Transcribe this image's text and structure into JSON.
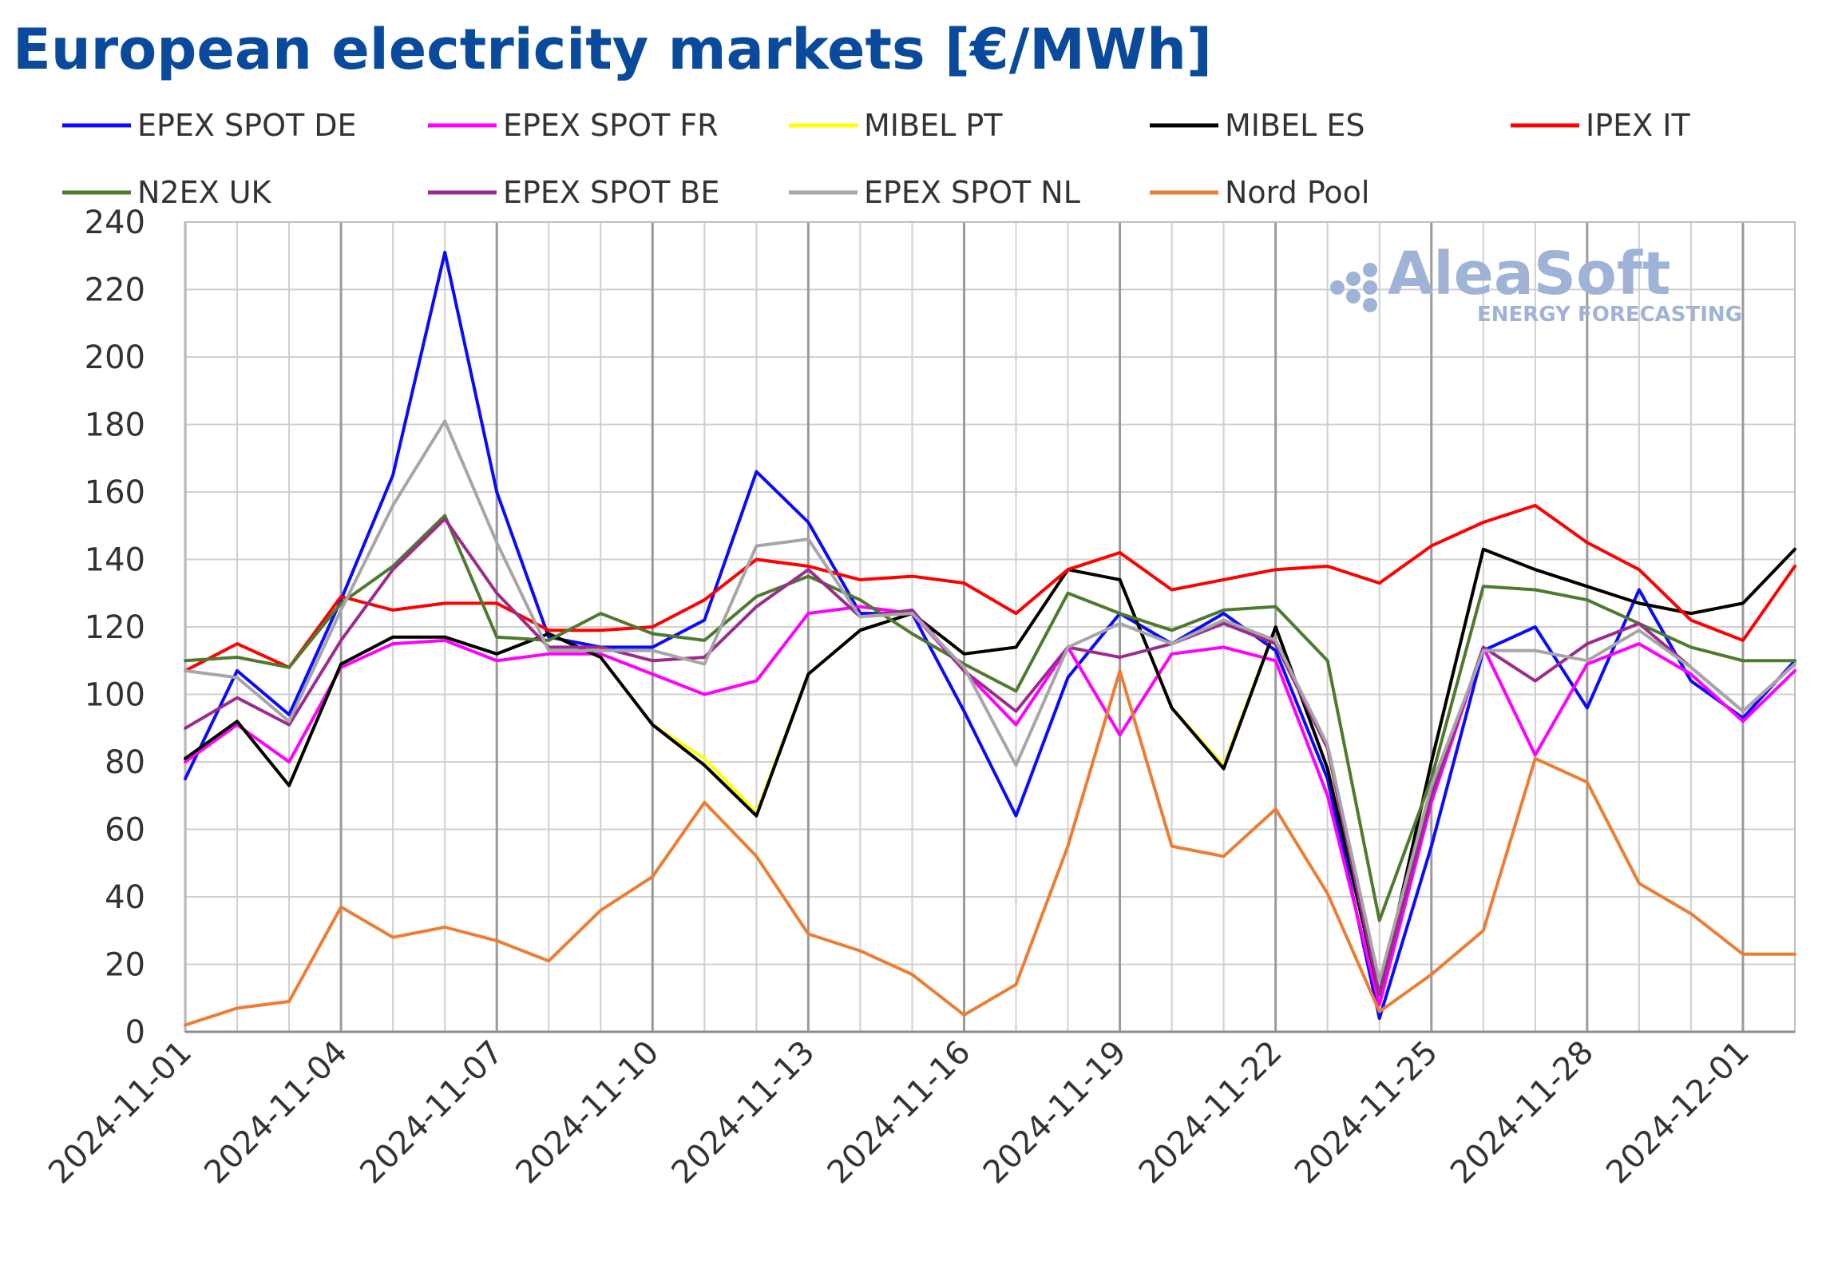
{
  "title": "European electricity markets [€/MWh]",
  "watermark": {
    "brand": "AleaSoft",
    "tagline": "ENERGY FORECASTING"
  },
  "chart_data": {
    "type": "line",
    "title": "European electricity markets [€/MWh]",
    "xlabel": "",
    "ylabel": "",
    "ylim": [
      0,
      240
    ],
    "yticks": [
      0,
      20,
      40,
      60,
      80,
      100,
      120,
      140,
      160,
      180,
      200,
      220,
      240
    ],
    "x": [
      "2024-11-01",
      "2024-11-02",
      "2024-11-03",
      "2024-11-04",
      "2024-11-05",
      "2024-11-06",
      "2024-11-07",
      "2024-11-08",
      "2024-11-09",
      "2024-11-10",
      "2024-11-11",
      "2024-11-12",
      "2024-11-13",
      "2024-11-14",
      "2024-11-15",
      "2024-11-16",
      "2024-11-17",
      "2024-11-18",
      "2024-11-19",
      "2024-11-20",
      "2024-11-21",
      "2024-11-22",
      "2024-11-23",
      "2024-11-24",
      "2024-11-25",
      "2024-11-26",
      "2024-11-27",
      "2024-11-28",
      "2024-11-29",
      "2024-11-30",
      "2024-12-01",
      "2024-12-02"
    ],
    "xtick_labels": [
      "2024-11-01",
      "2024-11-04",
      "2024-11-07",
      "2024-11-10",
      "2024-11-13",
      "2024-11-16",
      "2024-11-19",
      "2024-11-22",
      "2024-11-25",
      "2024-11-28",
      "2024-12-01"
    ],
    "grid": true,
    "legend_position": "top",
    "series": [
      {
        "name": "EPEX SPOT DE",
        "color": "#0a0aff",
        "values": [
          75,
          107,
          94,
          128,
          165,
          231,
          160,
          117,
          114,
          114,
          122,
          166,
          151,
          124,
          124,
          95,
          64,
          105,
          124,
          115,
          124,
          113,
          75,
          4,
          55,
          113,
          120,
          96,
          131,
          104,
          93,
          110
        ]
      },
      {
        "name": "EPEX SPOT FR",
        "color": "#ff00ff",
        "values": [
          80,
          91,
          80,
          108,
          115,
          116,
          110,
          112,
          112,
          106,
          100,
          104,
          124,
          126,
          124,
          107,
          91,
          114,
          88,
          112,
          114,
          110,
          70,
          8,
          68,
          114,
          82,
          109,
          115,
          106,
          92,
          107
        ]
      },
      {
        "name": "MIBEL PT",
        "color": "#ffff00",
        "values": [
          81,
          92,
          73,
          109,
          117,
          117,
          112,
          118,
          111,
          91,
          81,
          65,
          106,
          119,
          124,
          112,
          114,
          137,
          134,
          96,
          79,
          120,
          78,
          11,
          80,
          143,
          137,
          132,
          127,
          124,
          127,
          143
        ]
      },
      {
        "name": "MIBEL ES",
        "color": "#000000",
        "values": [
          81,
          92,
          73,
          109,
          117,
          117,
          112,
          118,
          111,
          91,
          79,
          64,
          106,
          119,
          124,
          112,
          114,
          137,
          134,
          96,
          78,
          120,
          78,
          11,
          80,
          143,
          137,
          132,
          127,
          124,
          127,
          143
        ]
      },
      {
        "name": "IPEX IT",
        "color": "#ff0000",
        "values": [
          107,
          115,
          108,
          129,
          125,
          127,
          127,
          119,
          119,
          120,
          128,
          140,
          138,
          134,
          135,
          133,
          124,
          137,
          142,
          131,
          134,
          137,
          138,
          133,
          144,
          151,
          156,
          145,
          137,
          122,
          116,
          138
        ]
      },
      {
        "name": "N2EX UK",
        "color": "#4e7a2e",
        "values": [
          110,
          111,
          108,
          127,
          138,
          153,
          117,
          116,
          124,
          118,
          116,
          129,
          135,
          128,
          118,
          109,
          101,
          130,
          124,
          119,
          125,
          126,
          110,
          33,
          75,
          132,
          131,
          128,
          121,
          114,
          110,
          110
        ]
      },
      {
        "name": "EPEX SPOT BE",
        "color": "#9b2c8d",
        "values": [
          90,
          99,
          91,
          116,
          137,
          152,
          130,
          114,
          114,
          110,
          111,
          126,
          137,
          123,
          125,
          107,
          95,
          114,
          111,
          115,
          121,
          115,
          84,
          11,
          70,
          114,
          104,
          115,
          121,
          108,
          95,
          109
        ]
      },
      {
        "name": "EPEX SPOT NL",
        "color": "#a6a6a6",
        "values": [
          107,
          105,
          92,
          125,
          156,
          181,
          145,
          113,
          113,
          113,
          109,
          144,
          146,
          123,
          124,
          108,
          79,
          114,
          121,
          115,
          122,
          116,
          85,
          15,
          73,
          113,
          113,
          110,
          119,
          108,
          95,
          109
        ]
      },
      {
        "name": "Nord Pool",
        "color": "#ed7d31",
        "values": [
          2,
          7,
          9,
          37,
          28,
          31,
          27,
          21,
          36,
          46,
          68,
          52,
          29,
          24,
          17,
          5,
          14,
          55,
          107,
          55,
          52,
          66,
          41,
          6,
          17,
          30,
          81,
          74,
          44,
          35,
          23,
          23
        ]
      }
    ]
  }
}
